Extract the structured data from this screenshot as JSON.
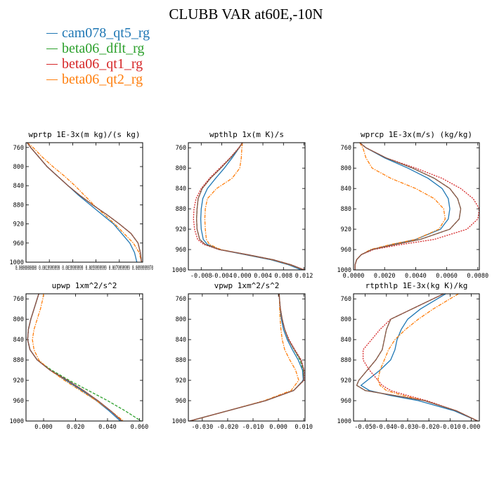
{
  "title": "CLUBB VAR at60E,-10N",
  "legend": [
    {
      "name": "cam078_qt5_rg",
      "color": "#1f77b4"
    },
    {
      "name": "beta06_dflt_rg",
      "color": "#2ca02c"
    },
    {
      "name": "beta06_qt1_rg",
      "color": "#d62728"
    },
    {
      "name": "beta06_qt2_rg",
      "color": "#ff7f0e"
    }
  ],
  "colors": {
    "cam078_qt5_rg": "#1f77b4",
    "beta06_dflt_rg": "#2ca02c",
    "beta06_qt1_rg": "#d62728",
    "beta06_qt2_rg": "#ff7f0e",
    "extra_line": "#8c564b"
  },
  "chart_data": [
    {
      "type": "line",
      "title": "wprtp  1E-3x(m kg)/(s kg)",
      "ylim": [
        1000,
        750
      ],
      "yticks": [
        760,
        800,
        840,
        880,
        920,
        960,
        1000
      ],
      "xlim": [
        0,
        0.00999999
      ],
      "xticks": [
        {
          "v": 0,
          "label": "0.0000000000"
        },
        {
          "v": 0.0019999,
          "label": "0.0019999999"
        },
        {
          "v": 0.0039999,
          "label": "0.0039999999"
        },
        {
          "v": 0.0059999,
          "label": "0.0059999999"
        },
        {
          "v": 0.0079999,
          "label": "0.0079999999"
        },
        {
          "v": 0.0099999,
          "label": "0.0099999970"
        }
      ],
      "y": [
        750,
        760,
        780,
        800,
        820,
        840,
        860,
        880,
        900,
        920,
        940,
        960,
        980,
        1000
      ],
      "series": [
        {
          "name": "cam078_qt5_rg",
          "x": [
            0.0001,
            0.0004,
            0.0011,
            0.0018,
            0.0027,
            0.0036,
            0.0045,
            0.0055,
            0.0065,
            0.0075,
            0.0082,
            0.0089,
            0.0093,
            0.0095
          ]
        },
        {
          "name": "beta06_dflt_rg",
          "x": [
            0.0001,
            0.0004,
            0.0011,
            0.0018,
            0.0027,
            0.0036,
            0.0046,
            0.0057,
            0.0069,
            0.008,
            0.009,
            0.0096,
            0.0098,
            0.0099
          ]
        },
        {
          "name": "beta06_qt1_rg",
          "x": [
            0.0001,
            0.0004,
            0.0011,
            0.0018,
            0.0027,
            0.0036,
            0.0046,
            0.0057,
            0.0069,
            0.008,
            0.009,
            0.0096,
            0.0098,
            0.0099
          ]
        },
        {
          "name": "beta06_qt2_rg",
          "x": [
            0.0001,
            0.0006,
            0.0014,
            0.0023,
            0.0033,
            0.0042,
            0.005,
            0.0058,
            0.0067,
            0.0076,
            0.0084,
            0.0092,
            0.0097,
            0.0099
          ]
        },
        {
          "name": "",
          "colorKey": "extra_line",
          "x": [
            0.0001,
            0.0004,
            0.0011,
            0.0018,
            0.0027,
            0.0036,
            0.0046,
            0.0057,
            0.0069,
            0.008,
            0.009,
            0.0096,
            0.0098,
            0.0099
          ]
        }
      ]
    },
    {
      "type": "line",
      "title": "wpthlp  1x(m K)/s",
      "ylim": [
        1000,
        750
      ],
      "yticks": [
        760,
        800,
        840,
        880,
        920,
        960,
        1000
      ],
      "xlim": [
        -0.0105,
        0.0122
      ],
      "xticks": [
        {
          "v": -0.008,
          "label": "-0.008"
        },
        {
          "v": -0.004,
          "label": "-0.004"
        },
        {
          "v": 0,
          "label": "0.000"
        },
        {
          "v": 0.004,
          "label": "0.004"
        },
        {
          "v": 0.008,
          "label": "0.008"
        },
        {
          "v": 0.012,
          "label": "0.012"
        }
      ],
      "y": [
        750,
        760,
        780,
        800,
        820,
        840,
        860,
        880,
        900,
        920,
        940,
        950,
        960,
        970,
        980,
        990,
        1000
      ],
      "series": [
        {
          "name": "cam078_qt5_rg",
          "x": [
            0.0,
            -0.0006,
            -0.002,
            -0.0035,
            -0.0052,
            -0.0068,
            -0.0077,
            -0.008,
            -0.0081,
            -0.008,
            -0.0076,
            -0.0068,
            -0.0045,
            0.0005,
            0.0055,
            0.009,
            0.0115
          ]
        },
        {
          "name": "beta06_dflt_rg",
          "x": [
            0.0,
            -0.0006,
            -0.0023,
            -0.0042,
            -0.0062,
            -0.0078,
            -0.0086,
            -0.0088,
            -0.0089,
            -0.0088,
            -0.0083,
            -0.0072,
            -0.0045,
            0.001,
            0.006,
            0.0095,
            0.012
          ]
        },
        {
          "name": "beta06_qt1_rg",
          "x": [
            0.0,
            -0.0007,
            -0.0024,
            -0.0044,
            -0.0064,
            -0.008,
            -0.009,
            -0.0094,
            -0.0095,
            -0.0093,
            -0.0087,
            -0.0075,
            -0.0046,
            0.001,
            0.006,
            0.0095,
            0.0121
          ]
        },
        {
          "name": "beta06_qt2_rg",
          "x": [
            0.0,
            -0.0001,
            -0.0002,
            -0.0005,
            -0.002,
            -0.005,
            -0.0068,
            -0.0072,
            -0.0073,
            -0.0072,
            -0.007,
            -0.0064,
            -0.0042,
            0.0008,
            0.0058,
            0.0093,
            0.012
          ]
        },
        {
          "name": "",
          "colorKey": "extra_line",
          "x": [
            0.0,
            -0.0006,
            -0.0023,
            -0.0042,
            -0.0062,
            -0.0078,
            -0.0086,
            -0.0088,
            -0.0089,
            -0.0088,
            -0.0083,
            -0.0072,
            -0.0045,
            0.001,
            0.006,
            0.0095,
            0.012
          ]
        }
      ]
    },
    {
      "type": "line",
      "title": "wprcp  1E-3x(m/s) (kg/kg)",
      "ylim": [
        1000,
        750
      ],
      "yticks": [
        760,
        800,
        840,
        880,
        920,
        960,
        1000
      ],
      "xlim": [
        0,
        0.0081
      ],
      "xticks": [
        {
          "v": 0,
          "label": "0.0000"
        },
        {
          "v": 0.002,
          "label": "0.0020"
        },
        {
          "v": 0.004,
          "label": "0.0040"
        },
        {
          "v": 0.006,
          "label": "0.0060"
        },
        {
          "v": 0.008,
          "label": "0.0080"
        }
      ],
      "y": [
        750,
        760,
        780,
        800,
        820,
        840,
        860,
        880,
        900,
        920,
        940,
        950,
        960,
        970,
        980,
        990,
        1000
      ],
      "series": [
        {
          "name": "cam078_qt5_rg",
          "x": [
            0.0004,
            0.0008,
            0.002,
            0.0035,
            0.0048,
            0.0057,
            0.0061,
            0.0062,
            0.0061,
            0.0056,
            0.004,
            0.0025,
            0.0012,
            0.0005,
            0.0002,
            0.0001,
            0.0001
          ]
        },
        {
          "name": "beta06_dflt_rg",
          "x": [
            0.0004,
            0.0008,
            0.0021,
            0.0038,
            0.0052,
            0.0062,
            0.0067,
            0.0069,
            0.0068,
            0.0062,
            0.0043,
            0.0027,
            0.0012,
            0.0005,
            0.0002,
            0.0001,
            0.0001
          ]
        },
        {
          "name": "beta06_qt1_rg",
          "x": [
            0.0004,
            0.0008,
            0.0021,
            0.004,
            0.0057,
            0.0069,
            0.0077,
            0.0081,
            0.008,
            0.0073,
            0.0052,
            0.0031,
            0.0013,
            0.0005,
            0.0002,
            0.0001,
            0.0001
          ]
        },
        {
          "name": "beta06_qt2_rg",
          "x": [
            0.0004,
            0.0006,
            0.0008,
            0.0012,
            0.0024,
            0.004,
            0.0052,
            0.0058,
            0.0059,
            0.0055,
            0.004,
            0.0024,
            0.0011,
            0.0005,
            0.0002,
            0.0001,
            0.0001
          ]
        },
        {
          "name": "",
          "colorKey": "extra_line",
          "x": [
            0.0004,
            0.0008,
            0.0021,
            0.0038,
            0.0052,
            0.0062,
            0.0067,
            0.0069,
            0.0068,
            0.0062,
            0.0043,
            0.0027,
            0.0012,
            0.0005,
            0.0002,
            0.0001,
            0.0001
          ]
        }
      ]
    },
    {
      "type": "line",
      "title": "upwp  1xm^2/s^2",
      "ylim": [
        1000,
        750
      ],
      "yticks": [
        760,
        800,
        840,
        880,
        920,
        960,
        1000
      ],
      "xlim": [
        -0.011,
        0.062
      ],
      "xticks": [
        {
          "v": 0,
          "label": "0.000"
        },
        {
          "v": 0.02,
          "label": "0.020"
        },
        {
          "v": 0.04,
          "label": "0.040"
        },
        {
          "v": 0.06,
          "label": "0.060"
        }
      ],
      "y": [
        750,
        760,
        780,
        800,
        820,
        840,
        860,
        880,
        900,
        920,
        940,
        960,
        980,
        1000
      ],
      "series": [
        {
          "name": "cam078_qt5_rg",
          "x": [
            -0.003,
            -0.004,
            -0.006,
            -0.008,
            -0.0095,
            -0.01,
            -0.0085,
            -0.004,
            0.004,
            0.014,
            0.024,
            0.033,
            0.041,
            0.048
          ]
        },
        {
          "name": "beta06_dflt_rg",
          "x": [
            -0.003,
            -0.004,
            -0.006,
            -0.008,
            -0.0095,
            -0.01,
            -0.0085,
            -0.004,
            0.005,
            0.016,
            0.028,
            0.04,
            0.051,
            0.061
          ]
        },
        {
          "name": "beta06_qt1_rg",
          "x": [
            -0.003,
            -0.004,
            -0.006,
            -0.008,
            -0.0095,
            -0.01,
            -0.0085,
            -0.004,
            0.004,
            0.015,
            0.025,
            0.034,
            0.042,
            0.049
          ]
        },
        {
          "name": "beta06_qt2_rg",
          "x": [
            0.0,
            -0.0005,
            -0.002,
            -0.004,
            -0.006,
            -0.007,
            -0.006,
            -0.003,
            0.004,
            0.013,
            0.023,
            0.033,
            0.042,
            0.05
          ]
        },
        {
          "name": "",
          "colorKey": "extra_line",
          "x": [
            -0.003,
            -0.004,
            -0.006,
            -0.008,
            -0.0095,
            -0.01,
            -0.0085,
            -0.004,
            0.004,
            0.015,
            0.025,
            0.034,
            0.042,
            0.049
          ]
        }
      ]
    },
    {
      "type": "line",
      "title": "vpwp  1xm^2/s^2",
      "ylim": [
        1000,
        750
      ],
      "yticks": [
        760,
        800,
        840,
        880,
        920,
        960,
        1000
      ],
      "xlim": [
        -0.0355,
        0.0105
      ],
      "xticks": [
        {
          "v": -0.03,
          "label": "-0.030"
        },
        {
          "v": -0.02,
          "label": "-0.020"
        },
        {
          "v": -0.01,
          "label": "-0.010"
        },
        {
          "v": 0,
          "label": "0.000"
        },
        {
          "v": 0.01,
          "label": "0.010"
        }
      ],
      "y": [
        750,
        760,
        780,
        800,
        820,
        840,
        860,
        880,
        900,
        920,
        940,
        960,
        980,
        1000
      ],
      "series": [
        {
          "name": "cam078_qt5_rg",
          "x": [
            0.0003,
            0.0004,
            0.0007,
            0.0012,
            0.002,
            0.0035,
            0.0055,
            0.0078,
            0.0095,
            0.0098,
            0.006,
            -0.005,
            -0.02,
            -0.035
          ]
        },
        {
          "name": "beta06_dflt_rg",
          "x": [
            0.0003,
            0.0004,
            0.0008,
            0.0015,
            0.0025,
            0.004,
            0.0062,
            0.0085,
            0.0098,
            0.01,
            0.006,
            -0.005,
            -0.02,
            -0.035
          ]
        },
        {
          "name": "beta06_qt1_rg",
          "x": [
            0.0003,
            0.0004,
            0.0008,
            0.0015,
            0.0025,
            0.0042,
            0.0065,
            0.009,
            0.0101,
            0.0101,
            0.006,
            -0.005,
            -0.02,
            -0.035
          ]
        },
        {
          "name": "beta06_qt2_rg",
          "x": [
            0.0003,
            0.0004,
            0.0005,
            0.0007,
            0.001,
            0.0015,
            0.0025,
            0.0045,
            0.0068,
            0.008,
            0.005,
            -0.0055,
            -0.02,
            -0.0348
          ]
        },
        {
          "name": "",
          "colorKey": "extra_line",
          "x": [
            0.0003,
            0.0004,
            0.0008,
            0.0015,
            0.0025,
            0.004,
            0.0063,
            0.0088,
            0.01,
            0.01,
            0.006,
            -0.005,
            -0.02,
            -0.035
          ]
        }
      ]
    },
    {
      "type": "line",
      "title": "rtpthlp  1E-3x(kg K)/kg",
      "ylim": [
        1000,
        750
      ],
      "yticks": [
        760,
        800,
        840,
        880,
        920,
        960,
        1000
      ],
      "xlim": [
        -0.0555,
        0.0038
      ],
      "xticks": [
        {
          "v": -0.05,
          "label": "-0.050"
        },
        {
          "v": -0.04,
          "label": "-0.040"
        },
        {
          "v": -0.03,
          "label": "-0.030"
        },
        {
          "v": -0.02,
          "label": "-0.020"
        },
        {
          "v": -0.01,
          "label": "-0.010"
        },
        {
          "v": 0,
          "label": "0.000"
        }
      ],
      "y": [
        750,
        760,
        780,
        800,
        820,
        840,
        860,
        880,
        900,
        920,
        930,
        940,
        950,
        960,
        980,
        1000
      ],
      "series": [
        {
          "name": "cam078_qt5_rg",
          "x": [
            -0.012,
            -0.016,
            -0.024,
            -0.03,
            -0.033,
            -0.035,
            -0.036,
            -0.038,
            -0.043,
            -0.049,
            -0.052,
            -0.048,
            -0.038,
            -0.025,
            -0.008,
            0.003
          ]
        },
        {
          "name": "beta06_dflt_rg",
          "x": [
            -0.013,
            -0.018,
            -0.028,
            -0.038,
            -0.04,
            -0.041,
            -0.042,
            -0.045,
            -0.049,
            -0.053,
            -0.054,
            -0.05,
            -0.036,
            -0.022,
            -0.007,
            0.003
          ]
        },
        {
          "name": "beta06_qt1_rg",
          "x": [
            -0.013,
            -0.018,
            -0.028,
            -0.038,
            -0.043,
            -0.047,
            -0.051,
            -0.051,
            -0.048,
            -0.044,
            -0.042,
            -0.038,
            -0.03,
            -0.021,
            -0.007,
            0.003
          ]
        },
        {
          "name": "beta06_qt2_rg",
          "x": [
            -0.006,
            -0.01,
            -0.018,
            -0.025,
            -0.031,
            -0.036,
            -0.039,
            -0.041,
            -0.043,
            -0.044,
            -0.043,
            -0.04,
            -0.032,
            -0.022,
            -0.007,
            0.003
          ]
        },
        {
          "name": "",
          "colorKey": "extra_line",
          "x": [
            -0.013,
            -0.018,
            -0.028,
            -0.038,
            -0.04,
            -0.041,
            -0.042,
            -0.045,
            -0.049,
            -0.053,
            -0.054,
            -0.05,
            -0.036,
            -0.022,
            -0.007,
            0.003
          ]
        }
      ]
    }
  ]
}
